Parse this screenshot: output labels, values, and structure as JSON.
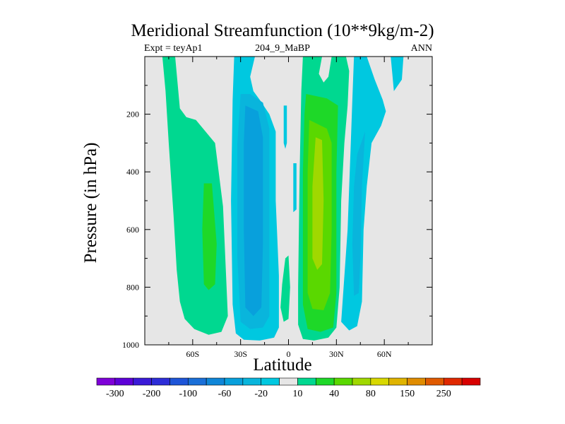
{
  "chart_data": {
    "type": "contour",
    "title": "Meridional Streamfunction (10**9kg/m-2)",
    "subtitle_left": "Expt = teyAp1",
    "subtitle_center": "204_9_MaBP",
    "subtitle_right": "ANN",
    "xlabel": "Latitude",
    "ylabel": "Pressure (in hPa)",
    "xlim": [
      -90,
      90
    ],
    "ylim": [
      1000,
      0
    ],
    "xticks": [
      {
        "value": -60,
        "label": "60S"
      },
      {
        "value": -30,
        "label": "30S"
      },
      {
        "value": 0,
        "label": "0"
      },
      {
        "value": 30,
        "label": "30N"
      },
      {
        "value": 60,
        "label": "60N"
      }
    ],
    "yticks": [
      {
        "value": 200,
        "label": "200"
      },
      {
        "value": 400,
        "label": "400"
      },
      {
        "value": 600,
        "label": "600"
      },
      {
        "value": 800,
        "label": "800"
      },
      {
        "value": 1000,
        "label": "1000"
      }
    ],
    "colorbar": {
      "levels": [
        -300,
        -250,
        -200,
        -150,
        -100,
        -80,
        -60,
        -40,
        -20,
        -10,
        10,
        20,
        40,
        60,
        80,
        100,
        150,
        200,
        250,
        300
      ],
      "labels": [
        -300,
        -200,
        -100,
        -60,
        -20,
        10,
        40,
        80,
        150,
        250
      ],
      "colors": [
        "#7e00d8",
        "#5d00d8",
        "#3a1ad8",
        "#2d2dd8",
        "#1e55d8",
        "#1a6fd8",
        "#0f86d8",
        "#08a0dc",
        "#09b5dc",
        "#00c8e0",
        "#e6e6e6",
        "#00d890",
        "#1ed828",
        "#5ad800",
        "#a0d800",
        "#d8d800",
        "#e0b400",
        "#e08c00",
        "#e05a00",
        "#e02800",
        "#d80000"
      ]
    },
    "regions": [
      {
        "name": "sh-outer-cell",
        "interval": "10 to 20",
        "poly": [
          [
            -79,
            0
          ],
          [
            -71,
            0
          ],
          [
            -68,
            180
          ],
          [
            -64,
            210
          ],
          [
            -58,
            220
          ],
          [
            -46,
            300
          ],
          [
            -41,
            520
          ],
          [
            -38,
            900
          ],
          [
            -42,
            955
          ],
          [
            -50,
            965
          ],
          [
            -59,
            945
          ],
          [
            -65,
            910
          ],
          [
            -68,
            850
          ],
          [
            -70,
            740
          ],
          [
            -72,
            550
          ],
          [
            -75,
            300
          ],
          [
            -77,
            120
          ]
        ]
      },
      {
        "name": "sh-outer-core",
        "interval": "20 to 40",
        "poly": [
          [
            -53,
            440
          ],
          [
            -48,
            440
          ],
          [
            -45,
            650
          ],
          [
            -46,
            790
          ],
          [
            -50,
            810
          ],
          [
            -53,
            790
          ],
          [
            -54,
            600
          ]
        ]
      },
      {
        "name": "sh-hadley-outer",
        "interval": "-10 to -20",
        "poly": [
          [
            -34,
            0
          ],
          [
            -21,
            0
          ],
          [
            -24,
            70
          ],
          [
            -22,
            120
          ],
          [
            -18,
            150
          ],
          [
            -12,
            200
          ],
          [
            -8,
            260
          ],
          [
            -8,
            500
          ],
          [
            -6,
            760
          ],
          [
            -6,
            940
          ],
          [
            -9,
            975
          ],
          [
            -18,
            985
          ],
          [
            -28,
            982
          ],
          [
            -33,
            960
          ],
          [
            -35,
            860
          ],
          [
            -36,
            500
          ],
          [
            -35,
            150
          ]
        ]
      },
      {
        "name": "sh-hadley-mid",
        "interval": "-20 to -40",
        "poly": [
          [
            -30,
            130
          ],
          [
            -24,
            130
          ],
          [
            -16,
            160
          ],
          [
            -12,
            250
          ],
          [
            -12,
            600
          ],
          [
            -12,
            900
          ],
          [
            -16,
            940
          ],
          [
            -24,
            945
          ],
          [
            -30,
            920
          ],
          [
            -32,
            700
          ],
          [
            -32,
            300
          ]
        ]
      },
      {
        "name": "sh-hadley-core",
        "interval": "-40 to -60",
        "poly": [
          [
            -27,
            170
          ],
          [
            -19,
            190
          ],
          [
            -16,
            280
          ],
          [
            -16,
            650
          ],
          [
            -17,
            870
          ],
          [
            -22,
            900
          ],
          [
            -27,
            870
          ],
          [
            -28,
            600
          ],
          [
            -28,
            300
          ]
        ]
      },
      {
        "name": "equatorial-strip-a",
        "interval": "-10 to -20",
        "poly": [
          [
            -3,
            170
          ],
          [
            -1,
            170
          ],
          [
            -1,
            300
          ],
          [
            -2,
            320
          ],
          [
            -3,
            300
          ]
        ]
      },
      {
        "name": "equatorial-strip-b",
        "interval": "-10 to -20",
        "poly": [
          [
            3,
            370
          ],
          [
            5,
            370
          ],
          [
            5,
            530
          ],
          [
            3,
            540
          ]
        ]
      },
      {
        "name": "nh-hadley-outer",
        "interval": "10 to 20",
        "poly": [
          [
            9,
            0
          ],
          [
            21,
            0
          ],
          [
            19,
            60
          ],
          [
            22,
            90
          ],
          [
            25,
            70
          ],
          [
            27,
            0
          ],
          [
            36,
            0
          ],
          [
            38,
            50
          ],
          [
            37,
            170
          ],
          [
            35,
            300
          ],
          [
            33,
            500
          ],
          [
            32,
            800
          ],
          [
            30,
            940
          ],
          [
            25,
            975
          ],
          [
            16,
            985
          ],
          [
            9,
            980
          ],
          [
            6,
            930
          ],
          [
            6,
            800
          ],
          [
            7,
            400
          ],
          [
            8,
            120
          ]
        ]
      },
      {
        "name": "nh-hadley-mid",
        "interval": "20 to 40",
        "poly": [
          [
            11,
            130
          ],
          [
            24,
            145
          ],
          [
            31,
            170
          ],
          [
            30,
            400
          ],
          [
            30,
            820
          ],
          [
            28,
            940
          ],
          [
            20,
            955
          ],
          [
            12,
            945
          ],
          [
            9,
            860
          ],
          [
            9,
            400
          ],
          [
            10,
            200
          ]
        ]
      },
      {
        "name": "nh-hadley-core",
        "interval": "40 to 60",
        "poly": [
          [
            13,
            220
          ],
          [
            24,
            250
          ],
          [
            27,
            300
          ],
          [
            27,
            600
          ],
          [
            26,
            820
          ],
          [
            22,
            880
          ],
          [
            15,
            875
          ],
          [
            12,
            820
          ],
          [
            12,
            400
          ]
        ]
      },
      {
        "name": "nh-hadley-peak",
        "interval": "60 to 80",
        "poly": [
          [
            17,
            280
          ],
          [
            21,
            290
          ],
          [
            22,
            500
          ],
          [
            21,
            720
          ],
          [
            18,
            740
          ],
          [
            15,
            700
          ],
          [
            15,
            450
          ]
        ]
      },
      {
        "name": "nh-outer-cell",
        "interval": "-10 to -20",
        "poly": [
          [
            41,
            0
          ],
          [
            49,
            0
          ],
          [
            54,
            80
          ],
          [
            59,
            150
          ],
          [
            61,
            190
          ],
          [
            58,
            240
          ],
          [
            52,
            300
          ],
          [
            49,
            450
          ],
          [
            47,
            600
          ],
          [
            46,
            850
          ],
          [
            43,
            935
          ],
          [
            38,
            950
          ],
          [
            33,
            920
          ],
          [
            37,
            600
          ],
          [
            39,
            300
          ],
          [
            40,
            150
          ]
        ]
      },
      {
        "name": "nh-outer-core",
        "interval": "-20 to -40",
        "poly": [
          [
            43,
            340
          ],
          [
            48,
            260
          ],
          [
            46,
            450
          ],
          [
            45,
            700
          ],
          [
            44,
            820
          ],
          [
            41,
            830
          ],
          [
            40,
            650
          ],
          [
            41,
            450
          ]
        ]
      },
      {
        "name": "nh-outer-strip",
        "interval": "-10 to -20",
        "poly": [
          [
            64,
            0
          ],
          [
            72,
            0
          ],
          [
            71,
            80
          ],
          [
            66,
            120
          ],
          [
            65,
            60
          ]
        ]
      },
      {
        "name": "nh-polar-cell",
        "interval": "10 to 20",
        "poly": [
          [
            -4,
            790
          ],
          [
            -2,
            700
          ],
          [
            0,
            690
          ],
          [
            1,
            800
          ],
          [
            0,
            910
          ],
          [
            -3,
            920
          ],
          [
            -5,
            870
          ]
        ]
      }
    ]
  }
}
